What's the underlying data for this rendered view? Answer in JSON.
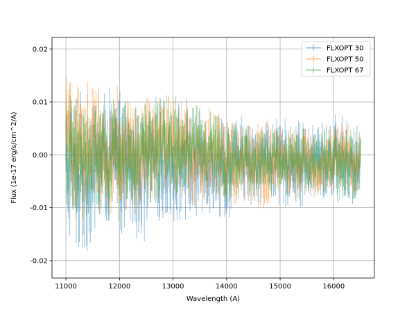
{
  "chart_data": {
    "type": "line",
    "title": "",
    "xlabel": "Wavelength (A)",
    "ylabel": "Flux (1e-17 erg/s/cm^2/A)",
    "xlim": [
      10740,
      16760
    ],
    "ylim": [
      -0.0233,
      0.0222
    ],
    "x_ticks": [
      11000,
      12000,
      13000,
      14000,
      15000,
      16000
    ],
    "x_tick_labels": [
      "11000",
      "12000",
      "13000",
      "14000",
      "15000",
      "16000"
    ],
    "y_ticks": [
      -0.02,
      -0.01,
      0.0,
      0.01,
      0.02
    ],
    "y_tick_labels": [
      "-0.02",
      "-0.01",
      "0.00",
      "0.01",
      "0.02"
    ],
    "grid": true,
    "legend_position": "top-right",
    "x": [
      11000,
      11250,
      11500,
      11750,
      12000,
      12250,
      12500,
      12750,
      13000,
      13250,
      13500,
      13750,
      14000,
      14250,
      14500,
      14750,
      15000,
      15250,
      15500,
      15750,
      16000,
      16250,
      16500
    ],
    "series": [
      {
        "name": "FLXOPT 30",
        "color": "#1f77b4",
        "values": [
          -0.002,
          -0.004,
          -0.003,
          0.0,
          -0.002,
          -0.003,
          -0.004,
          -0.001,
          -0.002,
          -0.001,
          -0.002,
          -0.001,
          -0.003,
          -0.001,
          -0.002,
          0.0,
          -0.002,
          -0.001,
          -0.002,
          -0.001,
          -0.001,
          -0.001,
          -0.002
        ],
        "errors": [
          0.009,
          0.009,
          0.009,
          0.008,
          0.008,
          0.008,
          0.008,
          0.007,
          0.007,
          0.007,
          0.006,
          0.006,
          0.006,
          0.005,
          0.005,
          0.005,
          0.005,
          0.005,
          0.005,
          0.005,
          0.005,
          0.005,
          0.005
        ]
      },
      {
        "name": "FLXOPT 50",
        "color": "#ff7f0e",
        "values": [
          0.003,
          0.001,
          0.002,
          0.0,
          0.001,
          0.0,
          0.001,
          0.001,
          0.002,
          0.001,
          0.0,
          0.0,
          -0.001,
          -0.002,
          -0.002,
          -0.002,
          -0.001,
          -0.002,
          -0.001,
          -0.002,
          -0.001,
          -0.001,
          -0.001
        ],
        "errors": [
          0.008,
          0.008,
          0.008,
          0.007,
          0.007,
          0.007,
          0.007,
          0.006,
          0.006,
          0.006,
          0.006,
          0.005,
          0.005,
          0.005,
          0.005,
          0.005,
          0.004,
          0.004,
          0.004,
          0.004,
          0.004,
          0.004,
          0.004
        ]
      },
      {
        "name": "FLXOPT 67",
        "color": "#2ca02c",
        "values": [
          0.0,
          -0.001,
          0.0,
          -0.002,
          0.0,
          -0.001,
          0.0,
          0.001,
          0.002,
          0.001,
          0.001,
          0.0,
          -0.002,
          -0.001,
          -0.002,
          -0.001,
          -0.001,
          -0.001,
          -0.001,
          -0.001,
          -0.001,
          -0.002,
          -0.002
        ],
        "errors": [
          0.007,
          0.007,
          0.007,
          0.007,
          0.007,
          0.006,
          0.006,
          0.006,
          0.006,
          0.005,
          0.005,
          0.005,
          0.005,
          0.004,
          0.004,
          0.004,
          0.004,
          0.004,
          0.004,
          0.004,
          0.004,
          0.004,
          0.004
        ]
      }
    ]
  }
}
